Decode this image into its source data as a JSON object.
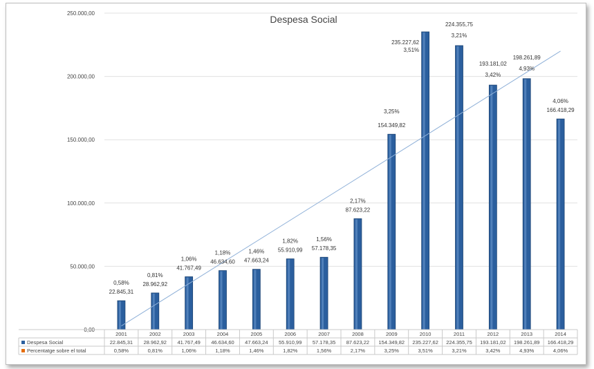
{
  "chart_data": {
    "type": "bar",
    "title": "Despesa Social",
    "categories": [
      "2001",
      "2002",
      "2003",
      "2004",
      "2005",
      "2006",
      "2007",
      "2008",
      "2009",
      "2010",
      "2011",
      "2012",
      "2013",
      "2014"
    ],
    "ylim": [
      0,
      250000
    ],
    "yticks": [
      "0,00",
      "50.000,00",
      "100.000,00",
      "150.000,00",
      "200.000,00",
      "250.000,00"
    ],
    "ytick_values": [
      0,
      50000,
      100000,
      150000,
      200000,
      250000
    ],
    "grid": true,
    "trendline": "linear",
    "series": [
      {
        "name": "Despesa Social",
        "values": [
          22845.31,
          28962.92,
          41767.49,
          46634.6,
          47663.24,
          55910.99,
          57178.35,
          87623.22,
          154349.82,
          235227.62,
          224355.75,
          193181.02,
          198261.89,
          166418.29
        ],
        "labels": [
          "22.845,31",
          "28.962,92",
          "41.767,49",
          "46.634,60",
          "47.663,24",
          "55.910,99",
          "57.178,35",
          "87.623,22",
          "154.349,82",
          "235.227,62",
          "224.355,75",
          "193.181,02",
          "198.261,89",
          "166.418,29"
        ],
        "color": "#2b5f9e"
      },
      {
        "name": "Percentatge sobre el total",
        "labels": [
          "0,58%",
          "0,81%",
          "1,06%",
          "1,18%",
          "1,46%",
          "1,82%",
          "1,56%",
          "2,17%",
          "3,25%",
          "3,51%",
          "3,21%",
          "3,42%",
          "4,93%",
          "4,06%"
        ],
        "color": "#e46c0a"
      }
    ],
    "table": {
      "rows": [
        {
          "name": "Despesa Social",
          "marker_color": "#2b5f9e",
          "values": [
            "22.845,31",
            "28.962,92",
            "41.767,49",
            "46.634,60",
            "47.663,24",
            "55.910,99",
            "57.178,35",
            "87.623,22",
            "154.349,82",
            "235.227,62",
            "224.355,75",
            "193.181,02",
            "198.261,89",
            "166.418,29"
          ]
        },
        {
          "name": "Percentatge sobre el total",
          "marker_color": "#e46c0a",
          "values": [
            "0,58%",
            "0,81%",
            "1,06%",
            "1,18%",
            "1,46%",
            "1,82%",
            "1,56%",
            "2,17%",
            "3,25%",
            "3,51%",
            "3,21%",
            "3,42%",
            "4,93%",
            "4,06%"
          ]
        }
      ]
    }
  }
}
